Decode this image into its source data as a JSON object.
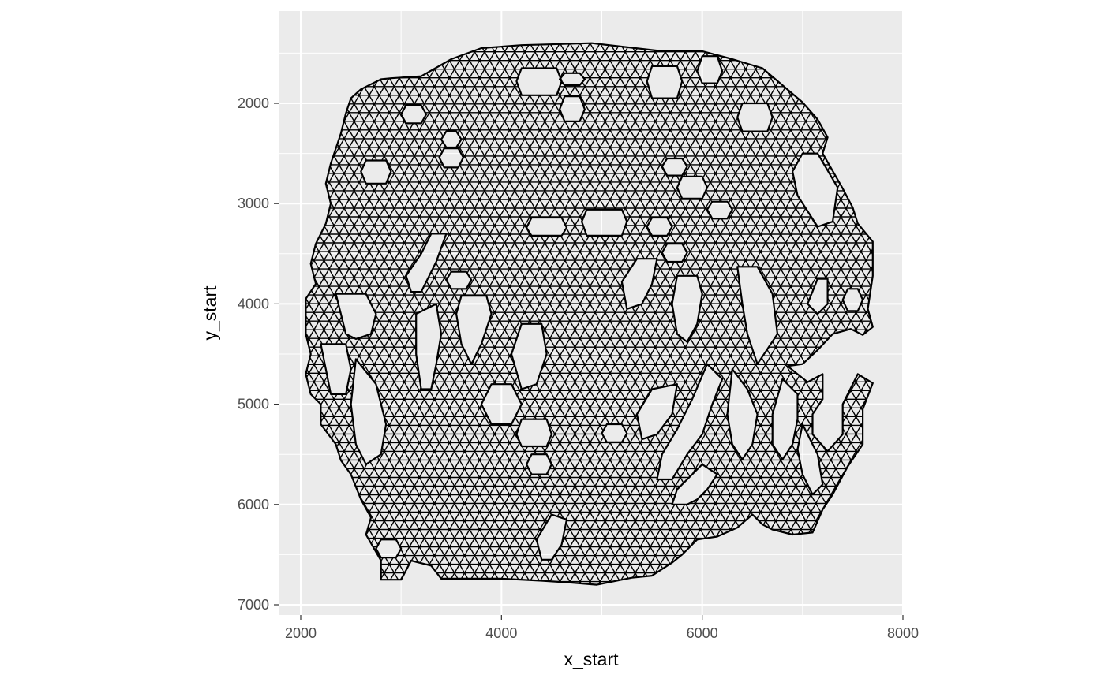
{
  "chart_data": {
    "type": "line",
    "description_note": "",
    "xlabel": "x_start",
    "ylabel": "y_start",
    "xlim": [
      1800,
      8000
    ],
    "ylim": [
      7050,
      1350
    ],
    "y_reversed": true,
    "x_ticks": [
      2000,
      4000,
      6000,
      8000
    ],
    "x_tick_labels": [
      "2000",
      "4000",
      "6000",
      "8000"
    ],
    "y_ticks": [
      2000,
      3000,
      4000,
      5000,
      6000,
      7000
    ],
    "y_tick_labels": [
      "2000",
      "3000",
      "4000",
      "5000",
      "6000",
      "7000"
    ],
    "grid": true,
    "panel_background": "#ebebeb",
    "grid_color": "#ffffff",
    "line_color": "#000000",
    "mesh": {
      "spacing_x": 100,
      "spacing_y": 86.6,
      "x_range": [
        2050,
        7700
      ],
      "y_range": [
        1400,
        6800
      ]
    },
    "outline": [
      [
        2900,
        1750
      ],
      [
        3200,
        1730
      ],
      [
        3500,
        1560
      ],
      [
        3800,
        1450
      ],
      [
        4200,
        1420
      ],
      [
        4900,
        1400
      ],
      [
        5600,
        1480
      ],
      [
        6000,
        1480
      ],
      [
        6300,
        1560
      ],
      [
        6600,
        1650
      ],
      [
        6800,
        1820
      ],
      [
        7000,
        1990
      ],
      [
        7150,
        2160
      ],
      [
        7250,
        2340
      ],
      [
        7200,
        2500
      ],
      [
        7400,
        2850
      ],
      [
        7500,
        3040
      ],
      [
        7550,
        3200
      ],
      [
        7700,
        3380
      ],
      [
        7700,
        3720
      ],
      [
        7650,
        4050
      ],
      [
        7700,
        4230
      ],
      [
        7600,
        4310
      ],
      [
        7480,
        4250
      ],
      [
        7300,
        4300
      ],
      [
        7150,
        4460
      ],
      [
        7000,
        4600
      ],
      [
        6850,
        4620
      ],
      [
        7050,
        4780
      ],
      [
        7200,
        4700
      ],
      [
        7200,
        4950
      ],
      [
        7100,
        5100
      ],
      [
        7100,
        5300
      ],
      [
        7250,
        5470
      ],
      [
        7400,
        5300
      ],
      [
        7400,
        5000
      ],
      [
        7550,
        4700
      ],
      [
        7700,
        4790
      ],
      [
        7600,
        5050
      ],
      [
        7600,
        5400
      ],
      [
        7450,
        5620
      ],
      [
        7300,
        5900
      ],
      [
        7200,
        6050
      ],
      [
        7100,
        6280
      ],
      [
        6900,
        6300
      ],
      [
        6700,
        6250
      ],
      [
        6600,
        6200
      ],
      [
        6500,
        6100
      ],
      [
        6350,
        6230
      ],
      [
        6150,
        6320
      ],
      [
        5950,
        6350
      ],
      [
        5800,
        6500
      ],
      [
        5700,
        6580
      ],
      [
        5500,
        6710
      ],
      [
        5300,
        6730
      ],
      [
        4950,
        6800
      ],
      [
        4700,
        6780
      ],
      [
        4400,
        6760
      ],
      [
        4000,
        6740
      ],
      [
        3700,
        6740
      ],
      [
        3400,
        6740
      ],
      [
        3300,
        6610
      ],
      [
        3100,
        6560
      ],
      [
        3000,
        6750
      ],
      [
        2800,
        6750
      ],
      [
        2800,
        6560
      ],
      [
        2650,
        6300
      ],
      [
        2700,
        6130
      ],
      [
        2600,
        5950
      ],
      [
        2500,
        5700
      ],
      [
        2400,
        5560
      ],
      [
        2350,
        5400
      ],
      [
        2200,
        5200
      ],
      [
        2200,
        5000
      ],
      [
        2100,
        4900
      ],
      [
        2050,
        4700
      ],
      [
        2100,
        4500
      ],
      [
        2050,
        4300
      ],
      [
        2050,
        4100
      ],
      [
        2050,
        3950
      ],
      [
        2150,
        3800
      ],
      [
        2100,
        3600
      ],
      [
        2150,
        3400
      ],
      [
        2250,
        3200
      ],
      [
        2300,
        3000
      ],
      [
        2250,
        2800
      ],
      [
        2300,
        2600
      ],
      [
        2400,
        2300
      ],
      [
        2450,
        2100
      ],
      [
        2500,
        1950
      ],
      [
        2600,
        1860
      ],
      [
        2800,
        1760
      ],
      [
        2900,
        1750
      ]
    ],
    "holes": [
      [
        [
          4200,
          1650
        ],
        [
          4550,
          1650
        ],
        [
          4600,
          1780
        ],
        [
          4550,
          1920
        ],
        [
          4200,
          1920
        ],
        [
          4150,
          1780
        ]
      ],
      [
        [
          4630,
          1930
        ],
        [
          4780,
          1930
        ],
        [
          4830,
          2060
        ],
        [
          4780,
          2180
        ],
        [
          4630,
          2180
        ],
        [
          4580,
          2060
        ]
      ],
      [
        [
          4630,
          1700
        ],
        [
          4780,
          1700
        ],
        [
          4830,
          1760
        ],
        [
          4780,
          1820
        ],
        [
          4630,
          1820
        ],
        [
          4580,
          1760
        ]
      ],
      [
        [
          5500,
          1630
        ],
        [
          5750,
          1630
        ],
        [
          5800,
          1780
        ],
        [
          5750,
          1950
        ],
        [
          5500,
          1950
        ],
        [
          5450,
          1780
        ]
      ],
      [
        [
          6000,
          1530
        ],
        [
          6150,
          1530
        ],
        [
          6200,
          1680
        ],
        [
          6150,
          1800
        ],
        [
          6000,
          1800
        ],
        [
          5950,
          1680
        ]
      ],
      [
        [
          6400,
          2000
        ],
        [
          6650,
          2000
        ],
        [
          6700,
          2140
        ],
        [
          6650,
          2280
        ],
        [
          6400,
          2280
        ],
        [
          6350,
          2140
        ]
      ],
      [
        [
          3050,
          2020
        ],
        [
          3200,
          2020
        ],
        [
          3250,
          2110
        ],
        [
          3200,
          2200
        ],
        [
          3050,
          2200
        ],
        [
          3000,
          2110
        ]
      ],
      [
        [
          3450,
          2280
        ],
        [
          3550,
          2280
        ],
        [
          3600,
          2360
        ],
        [
          3550,
          2440
        ],
        [
          3450,
          2440
        ],
        [
          3400,
          2360
        ]
      ],
      [
        [
          3430,
          2450
        ],
        [
          3570,
          2450
        ],
        [
          3620,
          2540
        ],
        [
          3570,
          2640
        ],
        [
          3430,
          2640
        ],
        [
          3380,
          2540
        ]
      ],
      [
        [
          2650,
          2570
        ],
        [
          2850,
          2570
        ],
        [
          2900,
          2680
        ],
        [
          2850,
          2800
        ],
        [
          2650,
          2800
        ],
        [
          2600,
          2680
        ]
      ],
      [
        [
          5650,
          2550
        ],
        [
          5800,
          2550
        ],
        [
          5850,
          2630
        ],
        [
          5800,
          2720
        ],
        [
          5650,
          2720
        ],
        [
          5600,
          2630
        ]
      ],
      [
        [
          5800,
          2730
        ],
        [
          6000,
          2730
        ],
        [
          6050,
          2840
        ],
        [
          6000,
          2950
        ],
        [
          5800,
          2950
        ],
        [
          5750,
          2840
        ]
      ],
      [
        [
          6100,
          2980
        ],
        [
          6250,
          2980
        ],
        [
          6300,
          3060
        ],
        [
          6250,
          3150
        ],
        [
          6100,
          3150
        ],
        [
          6050,
          3060
        ]
      ],
      [
        [
          7000,
          2500
        ],
        [
          7150,
          2500
        ],
        [
          7350,
          2840
        ],
        [
          7300,
          3180
        ],
        [
          7150,
          3230
        ],
        [
          6950,
          2920
        ],
        [
          6900,
          2680
        ]
      ],
      [
        [
          4850,
          3060
        ],
        [
          5200,
          3060
        ],
        [
          5250,
          3180
        ],
        [
          5200,
          3320
        ],
        [
          4850,
          3320
        ],
        [
          4800,
          3180
        ]
      ],
      [
        [
          4300,
          3140
        ],
        [
          4600,
          3140
        ],
        [
          4650,
          3240
        ],
        [
          4600,
          3320
        ],
        [
          4300,
          3320
        ],
        [
          4250,
          3240
        ]
      ],
      [
        [
          5500,
          3140
        ],
        [
          5650,
          3140
        ],
        [
          5700,
          3230
        ],
        [
          5650,
          3320
        ],
        [
          5500,
          3320
        ],
        [
          5450,
          3230
        ]
      ],
      [
        [
          5650,
          3400
        ],
        [
          5800,
          3400
        ],
        [
          5850,
          3490
        ],
        [
          5800,
          3580
        ],
        [
          5650,
          3580
        ],
        [
          5600,
          3490
        ]
      ],
      [
        [
          3500,
          3680
        ],
        [
          3650,
          3680
        ],
        [
          3700,
          3760
        ],
        [
          3650,
          3850
        ],
        [
          3500,
          3850
        ],
        [
          3450,
          3760
        ]
      ],
      [
        [
          3300,
          3300
        ],
        [
          3450,
          3300
        ],
        [
          3350,
          3580
        ],
        [
          3200,
          3880
        ],
        [
          3100,
          3880
        ],
        [
          3050,
          3720
        ],
        [
          3200,
          3500
        ]
      ],
      [
        [
          5350,
          3550
        ],
        [
          5550,
          3550
        ],
        [
          5500,
          3800
        ],
        [
          5400,
          4000
        ],
        [
          5250,
          4050
        ],
        [
          5200,
          3780
        ]
      ],
      [
        [
          5750,
          3720
        ],
        [
          5950,
          3720
        ],
        [
          6000,
          3900
        ],
        [
          5950,
          4200
        ],
        [
          5850,
          4380
        ],
        [
          5750,
          4300
        ],
        [
          5700,
          4000
        ]
      ],
      [
        [
          6350,
          3630
        ],
        [
          6550,
          3630
        ],
        [
          6700,
          3900
        ],
        [
          6750,
          4300
        ],
        [
          6650,
          4450
        ],
        [
          6550,
          4600
        ],
        [
          6450,
          4300
        ],
        [
          6400,
          4000
        ]
      ],
      [
        [
          7150,
          3750
        ],
        [
          7250,
          3750
        ],
        [
          7250,
          4000
        ],
        [
          7150,
          4100
        ],
        [
          7050,
          4000
        ]
      ],
      [
        [
          7450,
          3850
        ],
        [
          7550,
          3850
        ],
        [
          7600,
          3960
        ],
        [
          7550,
          4070
        ],
        [
          7450,
          4070
        ],
        [
          7400,
          3960
        ]
      ],
      [
        [
          2350,
          3900
        ],
        [
          2650,
          3900
        ],
        [
          2750,
          4100
        ],
        [
          2700,
          4300
        ],
        [
          2550,
          4350
        ],
        [
          2450,
          4300
        ],
        [
          2400,
          4100
        ]
      ],
      [
        [
          3150,
          4100
        ],
        [
          3350,
          4000
        ],
        [
          3400,
          4300
        ],
        [
          3350,
          4600
        ],
        [
          3300,
          4850
        ],
        [
          3200,
          4850
        ],
        [
          3150,
          4500
        ]
      ],
      [
        [
          3600,
          3920
        ],
        [
          3850,
          3920
        ],
        [
          3900,
          4100
        ],
        [
          3800,
          4400
        ],
        [
          3700,
          4600
        ],
        [
          3600,
          4400
        ],
        [
          3550,
          4100
        ]
      ],
      [
        [
          4200,
          4200
        ],
        [
          4400,
          4200
        ],
        [
          4450,
          4500
        ],
        [
          4350,
          4800
        ],
        [
          4200,
          4850
        ],
        [
          4100,
          4500
        ]
      ],
      [
        [
          3900,
          4800
        ],
        [
          4100,
          4800
        ],
        [
          4200,
          5000
        ],
        [
          4100,
          5200
        ],
        [
          3900,
          5200
        ],
        [
          3800,
          5000
        ]
      ],
      [
        [
          4200,
          5150
        ],
        [
          4450,
          5150
        ],
        [
          4500,
          5300
        ],
        [
          4450,
          5420
        ],
        [
          4200,
          5420
        ],
        [
          4150,
          5300
        ]
      ],
      [
        [
          5050,
          5200
        ],
        [
          5200,
          5200
        ],
        [
          5250,
          5290
        ],
        [
          5200,
          5380
        ],
        [
          5050,
          5380
        ],
        [
          5000,
          5290
        ]
      ],
      [
        [
          4300,
          5500
        ],
        [
          4450,
          5500
        ],
        [
          4500,
          5600
        ],
        [
          4450,
          5700
        ],
        [
          4300,
          5700
        ],
        [
          4250,
          5600
        ]
      ],
      [
        [
          2200,
          4400
        ],
        [
          2450,
          4400
        ],
        [
          2500,
          4650
        ],
        [
          2450,
          4900
        ],
        [
          2300,
          4900
        ],
        [
          2250,
          4650
        ]
      ],
      [
        [
          2550,
          4550
        ],
        [
          2750,
          4800
        ],
        [
          2850,
          5200
        ],
        [
          2800,
          5500
        ],
        [
          2650,
          5600
        ],
        [
          2550,
          5400
        ],
        [
          2500,
          5000
        ]
      ],
      [
        [
          5500,
          4850
        ],
        [
          5750,
          4800
        ],
        [
          5700,
          5100
        ],
        [
          5550,
          5300
        ],
        [
          5400,
          5350
        ],
        [
          5350,
          5100
        ]
      ],
      [
        [
          6050,
          4600
        ],
        [
          6200,
          4750
        ],
        [
          6100,
          5000
        ],
        [
          6000,
          5300
        ],
        [
          5850,
          5500
        ],
        [
          5700,
          5750
        ],
        [
          5550,
          5750
        ],
        [
          5600,
          5500
        ],
        [
          5750,
          5250
        ],
        [
          5900,
          4950
        ]
      ],
      [
        [
          6300,
          4650
        ],
        [
          6450,
          4850
        ],
        [
          6550,
          5100
        ],
        [
          6500,
          5400
        ],
        [
          6400,
          5550
        ],
        [
          6300,
          5400
        ],
        [
          6250,
          5100
        ]
      ],
      [
        [
          6800,
          4750
        ],
        [
          6950,
          4900
        ],
        [
          6950,
          5150
        ],
        [
          6900,
          5400
        ],
        [
          6800,
          5550
        ],
        [
          6700,
          5400
        ],
        [
          6700,
          5100
        ]
      ],
      [
        [
          6000,
          5600
        ],
        [
          6150,
          5700
        ],
        [
          6050,
          5850
        ],
        [
          5950,
          5950
        ],
        [
          5850,
          6000
        ],
        [
          5700,
          6000
        ],
        [
          5750,
          5850
        ]
      ],
      [
        [
          7000,
          5200
        ],
        [
          7150,
          5500
        ],
        [
          7200,
          5800
        ],
        [
          7100,
          5900
        ],
        [
          7000,
          5700
        ],
        [
          6950,
          5450
        ]
      ],
      [
        [
          4500,
          6100
        ],
        [
          4650,
          6150
        ],
        [
          4600,
          6400
        ],
        [
          4500,
          6550
        ],
        [
          4400,
          6550
        ],
        [
          4350,
          6350
        ]
      ],
      [
        [
          2800,
          6350
        ],
        [
          2950,
          6350
        ],
        [
          3000,
          6440
        ],
        [
          2950,
          6530
        ],
        [
          2800,
          6530
        ],
        [
          2750,
          6440
        ]
      ]
    ]
  }
}
